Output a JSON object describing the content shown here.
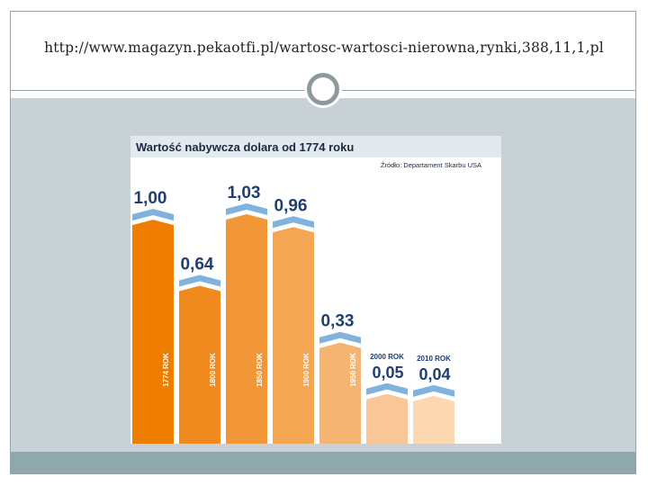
{
  "slide": {
    "title": "http://www.magazyn.pekaotfi.pl/wartosc-wartosci-nierowna,rynki,388,11,1,pl"
  },
  "colors": {
    "frame_border": "#9aa3a6",
    "content_bg": "#c8d2d6",
    "footer_bar": "#8fa8ab",
    "header_band": "#e2e9ef",
    "arrow": "#7fb3de",
    "value_text": "#1f3f73"
  },
  "chart_data": {
    "type": "bar",
    "title": "Wartość nabywcza dolara od 1774 roku",
    "source": "Źródło: Departament Skarbu USA",
    "categories": [
      "1774 ROK",
      "1800 ROK",
      "1850 ROK",
      "1900 ROK",
      "1950 ROK",
      "2000 ROK",
      "2010 ROK"
    ],
    "values": [
      1.0,
      0.64,
      1.03,
      0.96,
      0.33,
      0.05,
      0.04
    ],
    "value_labels": [
      "1,00",
      "0,64",
      "1,03",
      "0,96",
      "0,33",
      "0,05",
      "0,04"
    ],
    "bar_colors": [
      "#ef7d00",
      "#f08a1f",
      "#f29737",
      "#f4a653",
      "#f6b473",
      "#f9c797",
      "#fbd7b2"
    ],
    "ylim": [
      0,
      1.1
    ],
    "grid": false,
    "legend": "none"
  }
}
